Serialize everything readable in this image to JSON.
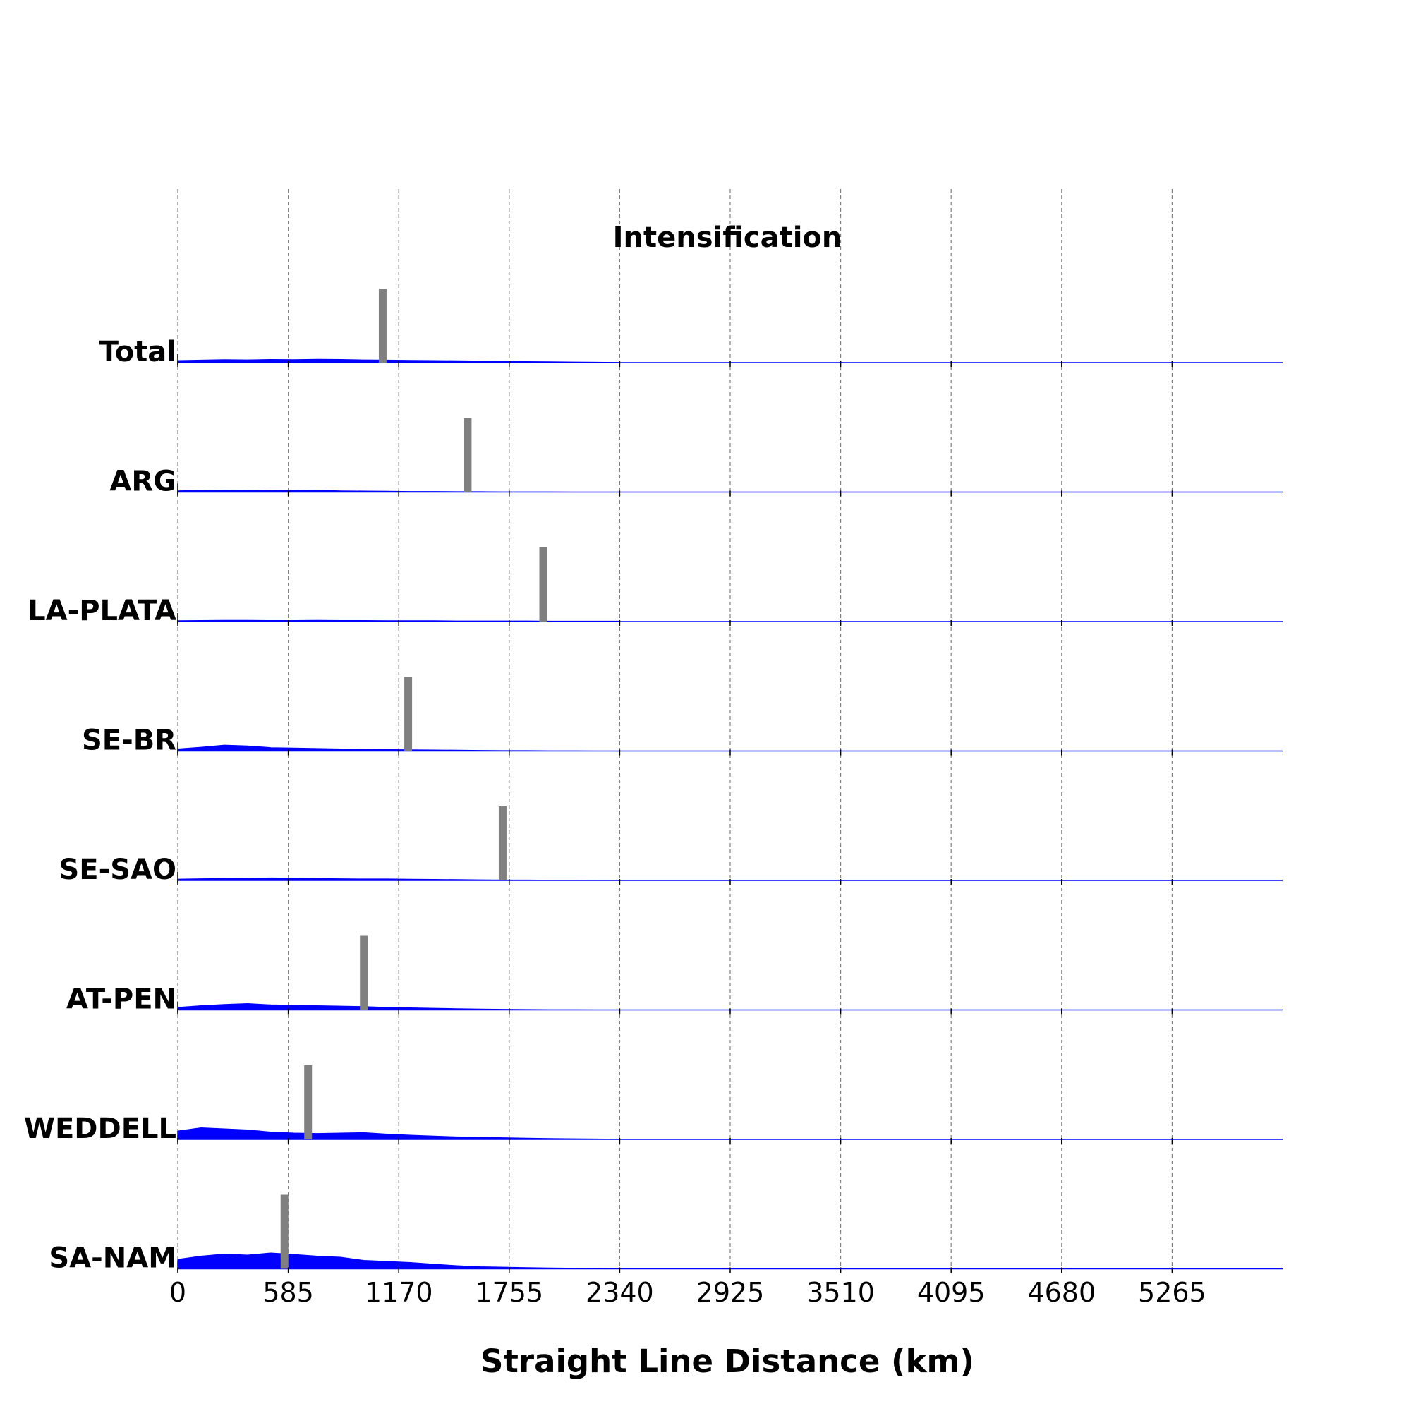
{
  "chart_data": {
    "type": "bar",
    "title": "Intensification",
    "xlabel": "Straight Line Distance (km)",
    "ylabel": "",
    "xlim": [
      0,
      5850
    ],
    "xticks": [
      0,
      585,
      1170,
      1755,
      2340,
      2925,
      3510,
      4095,
      4680,
      5265
    ],
    "xtick_labels": [
      "0",
      "585",
      "1170",
      "1755",
      "2340",
      "2925",
      "3510",
      "4095",
      "4680",
      "5265"
    ],
    "grid": true,
    "grid_style": "dashed-vertical",
    "rows": [
      {
        "label": "Total",
        "marker_x": 1085,
        "profile": [
          0.01,
          0.012,
          0.014,
          0.013,
          0.015,
          0.014,
          0.016,
          0.015,
          0.013,
          0.012,
          0.011,
          0.01,
          0.009,
          0.008,
          0.006,
          0.005,
          0.004,
          0.003,
          0.002,
          0.001
        ]
      },
      {
        "label": "ARG",
        "marker_x": 1535,
        "profile": [
          0.006,
          0.008,
          0.01,
          0.009,
          0.007,
          0.008,
          0.009,
          0.006,
          0.005,
          0.004,
          0.003,
          0.003,
          0.002,
          0.002,
          0.001,
          0.001,
          0.001,
          0.0,
          0.0,
          0.0
        ]
      },
      {
        "label": "LA-PLATA",
        "marker_x": 1935,
        "profile": [
          0.004,
          0.005,
          0.006,
          0.006,
          0.005,
          0.005,
          0.006,
          0.005,
          0.005,
          0.004,
          0.004,
          0.004,
          0.003,
          0.003,
          0.003,
          0.003,
          0.002,
          0.002,
          0.002,
          0.002
        ]
      },
      {
        "label": "SE-BR",
        "marker_x": 1220,
        "profile": [
          0.01,
          0.018,
          0.028,
          0.024,
          0.016,
          0.014,
          0.012,
          0.01,
          0.008,
          0.007,
          0.006,
          0.005,
          0.004,
          0.003,
          0.002,
          0.002,
          0.001,
          0.001,
          0.0,
          0.0
        ]
      },
      {
        "label": "SE-SAO",
        "marker_x": 1720,
        "profile": [
          0.006,
          0.008,
          0.009,
          0.01,
          0.012,
          0.011,
          0.009,
          0.008,
          0.007,
          0.007,
          0.006,
          0.005,
          0.004,
          0.003,
          0.002,
          0.002,
          0.001,
          0.001,
          0.0,
          0.0
        ]
      },
      {
        "label": "AT-PEN",
        "marker_x": 985,
        "profile": [
          0.012,
          0.02,
          0.026,
          0.03,
          0.024,
          0.022,
          0.02,
          0.018,
          0.016,
          0.012,
          0.01,
          0.008,
          0.006,
          0.004,
          0.003,
          0.002,
          0.001,
          0.001,
          0.0,
          0.0
        ]
      },
      {
        "label": "WEDDELL",
        "marker_x": 690,
        "profile": [
          0.04,
          0.055,
          0.05,
          0.045,
          0.035,
          0.03,
          0.028,
          0.03,
          0.032,
          0.025,
          0.02,
          0.016,
          0.012,
          0.01,
          0.008,
          0.006,
          0.004,
          0.003,
          0.002,
          0.001
        ]
      },
      {
        "label": "SA-NAM",
        "marker_x": 565,
        "profile": [
          0.045,
          0.06,
          0.07,
          0.065,
          0.075,
          0.068,
          0.06,
          0.055,
          0.04,
          0.035,
          0.03,
          0.022,
          0.015,
          0.01,
          0.008,
          0.006,
          0.004,
          0.003,
          0.002,
          0.001
        ]
      }
    ],
    "colors": {
      "density": "#0000ff",
      "marker": "#808080",
      "grid": "#808080",
      "axis": "#000000"
    }
  }
}
